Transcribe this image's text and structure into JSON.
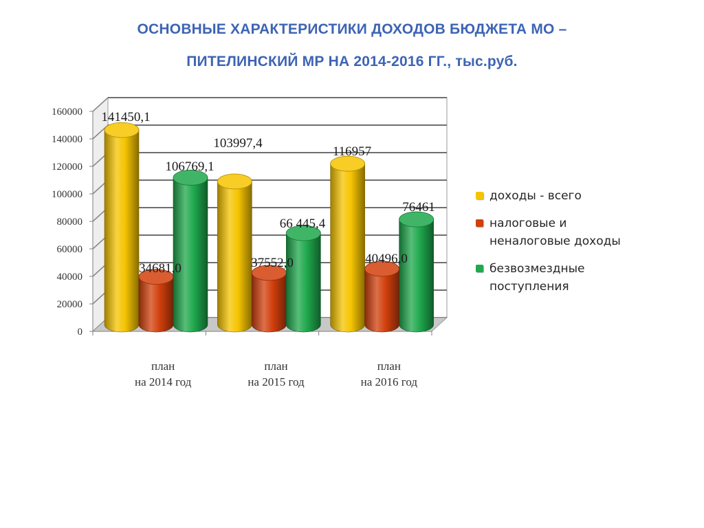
{
  "page": {
    "title_line1": "ОСНОВНЫЕ ХАРАКТЕРИСТИКИ ДОХОДОВ БЮДЖЕТА МО –",
    "title_line2": "ПИТЕЛИНСКИЙ МР НА 2014-2016 ГГ., тыс.руб."
  },
  "chart_data": {
    "type": "bar",
    "categories": [
      "план\nна 2014 год",
      "план\nна 2015 год",
      "план\nна 2016 год"
    ],
    "series": [
      {
        "name": "доходы - всего",
        "color": "#f5c400",
        "values": [
          141450.1,
          103997.4,
          116957
        ],
        "labels": [
          "141450,1",
          "103997,4",
          "116957"
        ]
      },
      {
        "name": "налоговые и неналоговые доходы",
        "color": "#d2400d",
        "values": [
          34681.0,
          37552.0,
          40496.0
        ],
        "labels": [
          "34681,0",
          "37552,0",
          "40496,0"
        ]
      },
      {
        "name": "безвозмездные поступления",
        "color": "#1fa84c",
        "values": [
          106769.1,
          66445.4,
          76461
        ],
        "labels": [
          "106769,1",
          "66 445,4",
          "76461"
        ]
      }
    ],
    "yticks": [
      "0",
      "20000",
      "40000",
      "60000",
      "80000",
      "100000",
      "120000",
      "140000",
      "160000"
    ],
    "ylim": [
      0,
      160000
    ],
    "grid": true,
    "legend_position": "right"
  }
}
